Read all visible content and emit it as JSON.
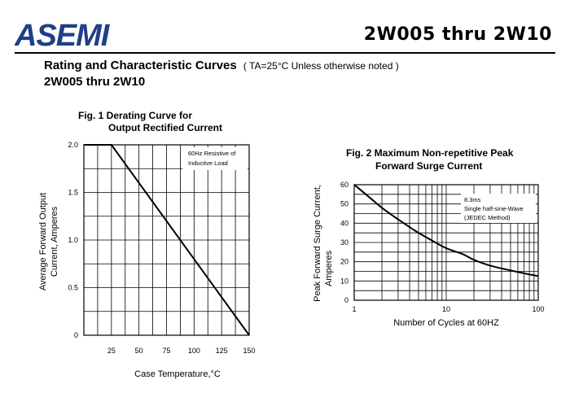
{
  "header": {
    "logo_text": "ASEMI",
    "part_range": "2W005 thru 2W10"
  },
  "section": {
    "title": "Rating and Characteristic Curves",
    "note": "( TA=25°C Unless otherwise noted )",
    "subtitle": "2W005 thru 2W10"
  },
  "chart_data": [
    {
      "type": "line",
      "title": [
        "Fig. 1 Derating Curve for",
        "Output Rectified Current"
      ],
      "xlabel": "Case Temperature,°C",
      "ylabel": [
        "Average Forward Output",
        "Current, Amperes"
      ],
      "xlim": [
        0,
        150
      ],
      "ylim": [
        0,
        2.0
      ],
      "x_ticks": [
        25,
        50,
        75,
        100,
        125,
        150
      ],
      "x_tick_labels": [
        "25",
        "50",
        "75",
        "100",
        "125",
        "150"
      ],
      "y_ticks": [
        0,
        0.5,
        1.0,
        1.5,
        2.0
      ],
      "y_tick_labels": [
        "0",
        "0.5",
        "1.0",
        "1.5",
        "2.0"
      ],
      "grid": true,
      "annotation": [
        "60Hz Resistive of",
        "Inductive Load"
      ],
      "series": [
        {
          "x": [
            0,
            25,
            150
          ],
          "y": [
            2.0,
            2.0,
            0
          ]
        }
      ]
    },
    {
      "type": "line",
      "title": [
        "Fig. 2 Maximum Non-repetitive Peak",
        "Forward Surge Current"
      ],
      "xlabel": "Number of Cycles at 60HZ",
      "ylabel": [
        "Peak Forward Surge Current,",
        "Amperes"
      ],
      "xscale": "log",
      "xlim": [
        1,
        100
      ],
      "ylim": [
        0,
        60
      ],
      "x_tick_labels": [
        "1",
        "10",
        "100"
      ],
      "y_ticks": [
        0,
        10,
        20,
        30,
        40,
        50,
        60
      ],
      "y_tick_labels": [
        "0",
        "10",
        "20",
        "30",
        "40",
        "50",
        "60"
      ],
      "grid": true,
      "annotation": [
        "8.3ms",
        "Single half-sine-Wave",
        "(JEDEC Method)"
      ],
      "series": [
        {
          "x": [
            1,
            1.5,
            2,
            3,
            4,
            5,
            7,
            10,
            15,
            20,
            30,
            50,
            70,
            100
          ],
          "y": [
            60,
            53,
            48,
            42,
            38,
            35,
            31,
            27,
            24,
            21,
            18,
            15.5,
            14,
            12.5
          ]
        }
      ]
    }
  ]
}
